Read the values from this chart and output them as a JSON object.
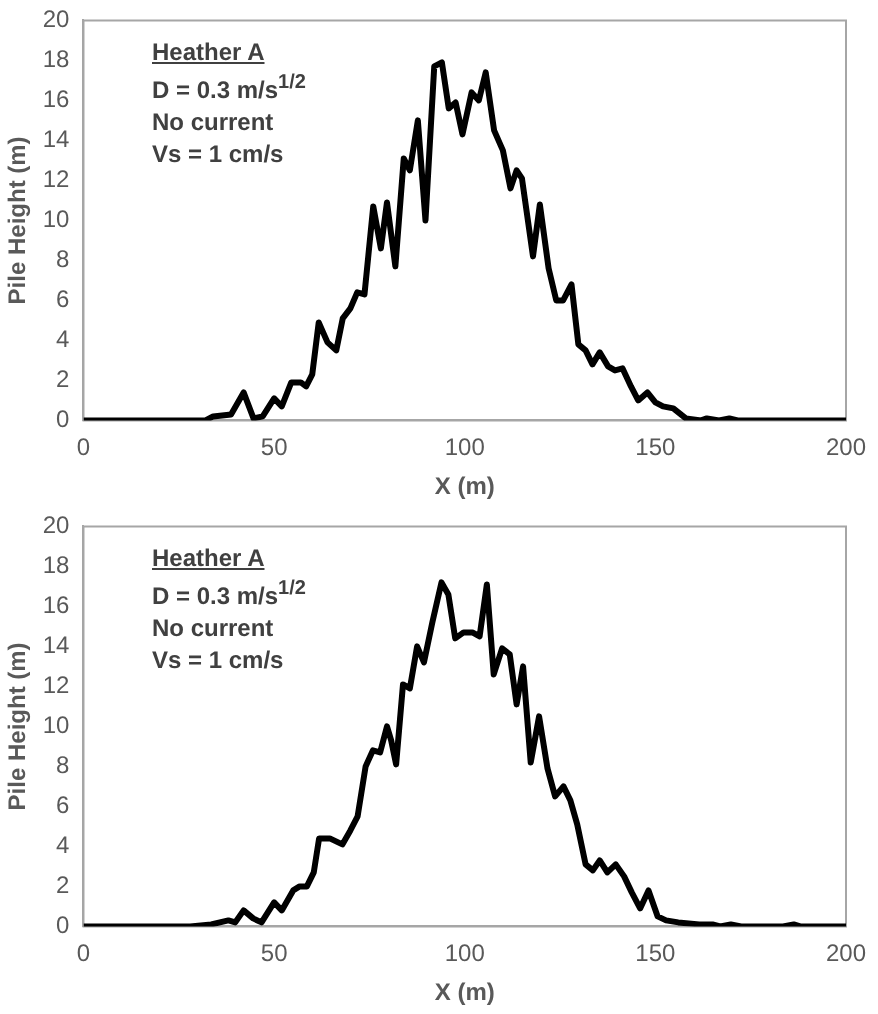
{
  "chart_data": [
    {
      "type": "line",
      "xlabel": "X (m)",
      "ylabel": "Pile Height (m)",
      "annotations": [
        "Heather A",
        "D = 0.3 m/s$^{1/2}$",
        "No current",
        "Vs = 1 cm/s"
      ],
      "xlim": [
        0,
        200
      ],
      "xticks": [
        0,
        50,
        100,
        150,
        200
      ],
      "ylim": [
        0,
        20
      ],
      "yticks": [
        0,
        2,
        4,
        6,
        8,
        10,
        12,
        14,
        16,
        18,
        20
      ],
      "grid": false,
      "legend": false,
      "marker": "none",
      "line_style": "solid",
      "series": [
        {
          "color": "#000000",
          "x": [
            0,
            32,
            34,
            38.7,
            42,
            44.6,
            47,
            50,
            52,
            54.5,
            57,
            58.4,
            60,
            61.7,
            64,
            66.3,
            68,
            70,
            71.8,
            73.7,
            76,
            78,
            79.6,
            81.8,
            84,
            85.6,
            87.7,
            89.7,
            92,
            94,
            95.8,
            97.6,
            99.4,
            101.8,
            103.7,
            105.5,
            107.7,
            110,
            112,
            113.6,
            115,
            117.9,
            119.7,
            122,
            124,
            125.8,
            128,
            129.8,
            131.7,
            133.5,
            135.4,
            137.6,
            139.4,
            141.4,
            143.6,
            145.5,
            147.9,
            150,
            152,
            154.7,
            158,
            162,
            163.5,
            166.7,
            169.4,
            171.6,
            200
          ],
          "values": [
            0,
            0,
            0.2,
            0.3,
            1.4,
            0.1,
            0.2,
            1.1,
            0.7,
            1.9,
            1.9,
            1.7,
            2.3,
            4.9,
            3.9,
            3.5,
            5.1,
            5.6,
            6.4,
            6.3,
            10.7,
            8.6,
            10.9,
            7.7,
            13.1,
            12.5,
            15,
            10,
            17.7,
            17.9,
            15.6,
            15.9,
            14.3,
            16.4,
            16,
            17.4,
            14.5,
            13.5,
            11.6,
            12.5,
            12.1,
            8.2,
            10.8,
            7.6,
            6,
            6,
            6.8,
            3.8,
            3.5,
            2.8,
            3.4,
            2.7,
            2.5,
            2.6,
            1.7,
            1,
            1.4,
            0.9,
            0.7,
            0.6,
            0.1,
            0,
            0.1,
            0,
            0.1,
            0,
            0
          ]
        }
      ]
    },
    {
      "type": "line",
      "xlabel": "X (m)",
      "ylabel": "Pile Height (m)",
      "annotations": [
        "Heather A",
        "D = 0.3 m/s$^{1/2}$",
        "No current",
        "Vs = 1 cm/s"
      ],
      "xlim": [
        0,
        200
      ],
      "xticks": [
        0,
        50,
        100,
        150,
        200
      ],
      "ylim": [
        0,
        20
      ],
      "yticks": [
        0,
        2,
        4,
        6,
        8,
        10,
        12,
        14,
        16,
        18,
        20
      ],
      "grid": false,
      "legend": false,
      "marker": "none",
      "line_style": "solid",
      "series": [
        {
          "color": "#000000",
          "x": [
            0,
            28,
            33.5,
            38,
            39.8,
            42,
            44.5,
            46.7,
            50,
            52,
            55,
            56.7,
            58.6,
            60.4,
            61.8,
            64.6,
            67.9,
            70,
            71.9,
            74,
            75.9,
            77.8,
            79.6,
            80.7,
            82,
            83.8,
            85.6,
            87.5,
            89.3,
            91.5,
            93.9,
            95.7,
            97.5,
            99.7,
            102,
            103.9,
            105.8,
            107.6,
            109.8,
            111.8,
            113.6,
            115.3,
            117.3,
            119.5,
            121.7,
            123.7,
            125.9,
            127.7,
            129.5,
            131.7,
            133.6,
            135.4,
            137.4,
            139.6,
            141.8,
            143.8,
            146,
            148.2,
            150.6,
            152.8,
            156,
            161.5,
            165,
            167,
            169.8,
            172.5,
            183.5,
            186.3,
            188,
            200
          ],
          "values": [
            0,
            0,
            0.1,
            0.3,
            0.2,
            0.8,
            0.4,
            0.2,
            1.2,
            0.8,
            1.8,
            2,
            2,
            2.7,
            4.4,
            4.4,
            4.1,
            4.8,
            5.5,
            8,
            8.8,
            8.7,
            10,
            9.3,
            8.1,
            12.1,
            11.9,
            14,
            13.2,
            15.2,
            17.2,
            16.6,
            14.4,
            14.7,
            14.7,
            14.5,
            17.1,
            12.6,
            13.9,
            13.6,
            11.1,
            13,
            8.2,
            10.5,
            7.9,
            6.5,
            7,
            6.3,
            5.1,
            3.1,
            2.8,
            3.3,
            2.7,
            3.1,
            2.5,
            1.7,
            0.9,
            1.8,
            0.5,
            0.3,
            0.2,
            0.1,
            0.1,
            0,
            0.1,
            0,
            0,
            0.1,
            0,
            0
          ]
        }
      ]
    }
  ]
}
